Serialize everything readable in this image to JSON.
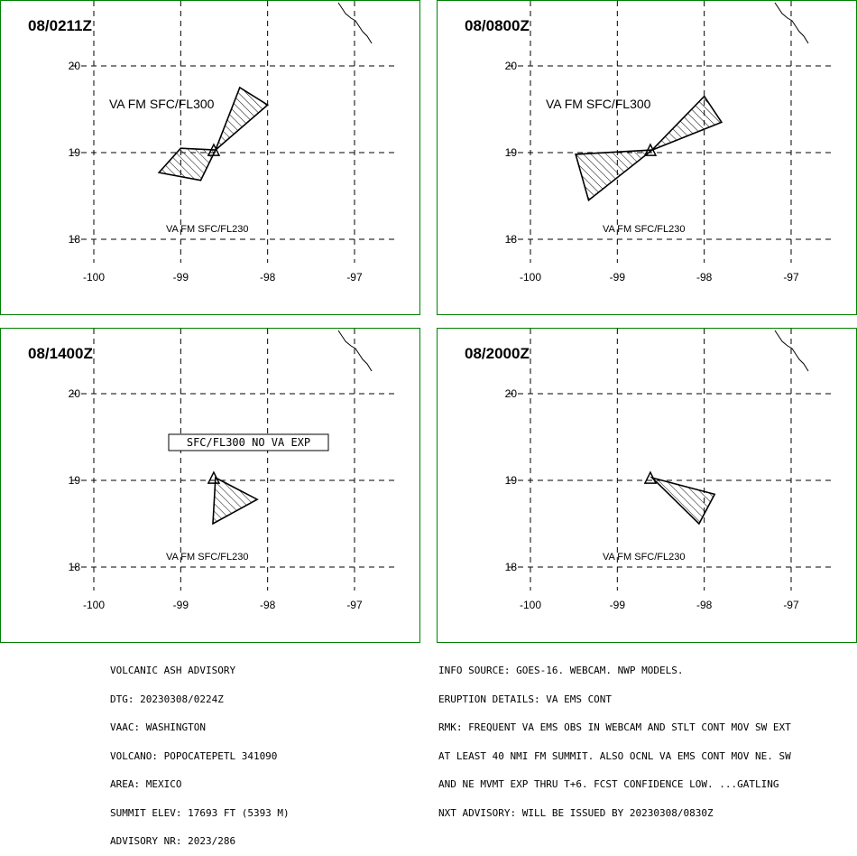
{
  "panels": [
    {
      "time": "08/0211Z",
      "labels": [
        "VA FM SFC/FL300",
        "VA FM SFC/FL230"
      ],
      "boxed_label": "",
      "polygons": [
        [
          [
            -98.6,
            19.03
          ],
          [
            -98.32,
            19.75
          ],
          [
            -98.0,
            19.55
          ]
        ],
        [
          [
            -98.6,
            19.03
          ],
          [
            -99.0,
            19.05
          ],
          [
            -99.25,
            18.77
          ],
          [
            -98.77,
            18.68
          ]
        ]
      ]
    },
    {
      "time": "08/0800Z",
      "labels": [
        "VA FM SFC/FL300",
        "VA FM SFC/FL230"
      ],
      "boxed_label": "",
      "polygons": [
        [
          [
            -98.6,
            19.03
          ],
          [
            -98.0,
            19.65
          ],
          [
            -97.8,
            19.35
          ]
        ],
        [
          [
            -98.6,
            19.03
          ],
          [
            -99.48,
            18.98
          ],
          [
            -99.33,
            18.45
          ]
        ]
      ]
    },
    {
      "time": "08/1400Z",
      "labels": [
        "",
        "VA FM SFC/FL230"
      ],
      "boxed_label": "SFC/FL300 NO VA EXP",
      "polygons": [
        [
          [
            -98.6,
            19.03
          ],
          [
            -98.12,
            18.78
          ],
          [
            -98.63,
            18.5
          ]
        ]
      ]
    },
    {
      "time": "08/2000Z",
      "labels": [
        "",
        "VA FM SFC/FL230"
      ],
      "boxed_label": "",
      "polygons": [
        [
          [
            -98.6,
            19.03
          ],
          [
            -97.88,
            18.84
          ],
          [
            -98.06,
            18.5
          ]
        ]
      ]
    }
  ],
  "axes": {
    "lon_ticks": [
      "-100",
      "-99",
      "-98",
      "-97"
    ],
    "lat_ticks": [
      "20",
      "19",
      "18"
    ],
    "lon_range": [
      -100,
      -97
    ],
    "lat_range": [
      18,
      20
    ]
  },
  "volcano": {
    "lon": -98.62,
    "lat": 19.02,
    "symbol": "triangle"
  },
  "colors": {
    "border": "#008000",
    "line": "#000000",
    "background": "#ffffff"
  },
  "advisory_left": [
    "VOLCANIC ASH ADVISORY",
    "DTG: 20230308/0224Z",
    "VAAC: WASHINGTON",
    "VOLCANO: POPOCATEPETL 341090",
    "AREA: MEXICO",
    "SUMMIT ELEV: 17693 FT (5393 M)",
    "ADVISORY NR: 2023/286"
  ],
  "advisory_right": [
    "INFO SOURCE: GOES-16. WEBCAM. NWP MODELS.",
    "ERUPTION DETAILS: VA EMS CONT",
    "RMK: FREQUENT VA EMS OBS IN WEBCAM AND STLT CONT MOV SW EXT",
    "AT LEAST 40 NMI FM SUMMIT. ALSO OCNL VA EMS CONT MOV NE. SW",
    "AND NE MVMT EXP THRU T+6. FCST CONFIDENCE LOW. ...GATLING",
    "NXT ADVISORY: WILL BE ISSUED BY 20230308/0830Z"
  ]
}
